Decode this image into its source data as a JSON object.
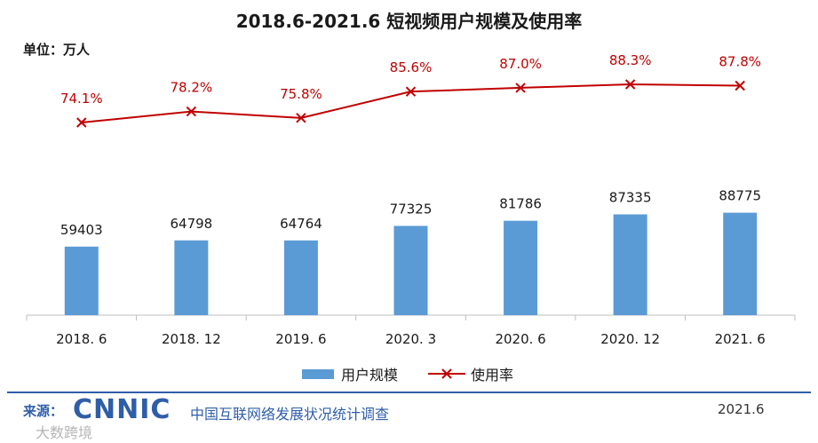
{
  "title": "2018.6-2021.6 短视频用户规模及使用率",
  "unit_label": "单位：万人",
  "colors": {
    "bar": "#5b9bd5",
    "line": "#c00000",
    "footer": "#2f5ea8"
  },
  "legend": {
    "bar": "用户规模",
    "line": "使用率"
  },
  "footer": {
    "source_label": "来源：",
    "logo_text": "CNNIC",
    "org_name": "中国互联网络发展状况统计调查",
    "date": "2021.6"
  },
  "corner_watermark": "大数跨境",
  "chart_data": {
    "type": "bar",
    "categories": [
      "2018. 6",
      "2018. 12",
      "2019. 6",
      "2020. 3",
      "2020. 6",
      "2020. 12",
      "2021. 6"
    ],
    "series": [
      {
        "name": "用户规模",
        "type": "bar",
        "values": [
          59403,
          64798,
          64764,
          77325,
          81786,
          87335,
          88775
        ]
      },
      {
        "name": "使用率",
        "type": "line",
        "values": [
          74.1,
          78.2,
          75.8,
          85.6,
          87.0,
          88.3,
          87.8
        ],
        "labels": [
          "74.1%",
          "78.2%",
          "75.8%",
          "85.6%",
          "87.0%",
          "88.3%",
          "87.8%"
        ]
      }
    ],
    "bar_ylim": [
      0,
      150000
    ],
    "line_ylim": [
      0,
      100
    ],
    "legend_position": "bottom",
    "grid": false
  }
}
